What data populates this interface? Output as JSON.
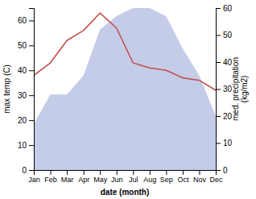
{
  "chart_data": {
    "type": "line",
    "categories": [
      "Jan",
      "Feb",
      "Mar",
      "Apr",
      "May",
      "Jun",
      "Jul",
      "Aug",
      "Sep",
      "Oct",
      "Nov",
      "Dec"
    ],
    "x_label": "date (month)",
    "y_label": "max temp (C)",
    "y2_label": "med. precipitation\n(kg/m2)",
    "ylim": [
      0,
      65
    ],
    "yticks": [
      0,
      10,
      20,
      30,
      40,
      50,
      60
    ],
    "y2lim": [
      0,
      60
    ],
    "y2ticks": [
      0,
      10,
      20,
      30,
      40,
      50,
      60
    ],
    "series": [
      {
        "type": "area",
        "axis": "y2",
        "color": "#c5cce8",
        "values": [
          17,
          28,
          28,
          35,
          52,
          57,
          60,
          60,
          57,
          45,
          35,
          20
        ]
      },
      {
        "type": "line",
        "color": "#c0504d",
        "values": [
          38,
          43,
          52,
          56,
          63,
          57,
          43,
          41,
          40,
          37,
          36,
          32
        ]
      }
    ]
  }
}
